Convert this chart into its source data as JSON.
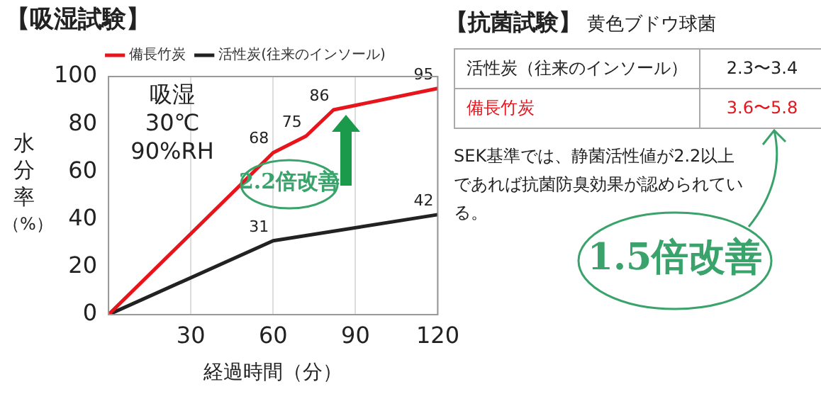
{
  "chart_data": [
    {
      "type": "line",
      "title": "【吸湿試験】",
      "xlabel": "経過時間（分）",
      "ylabel": "水分率（%）",
      "xlim": [
        0,
        120
      ],
      "xticks": [
        30,
        60,
        90,
        120
      ],
      "ylim": [
        0,
        100
      ],
      "yticks": [
        0,
        20,
        40,
        60,
        80,
        100
      ],
      "grid": "x",
      "legend": "top",
      "marker": "none",
      "line_style": "solid",
      "series": [
        {
          "name": "備長竹炭",
          "color": "#e8141c",
          "x": [
            0,
            60,
            72,
            82,
            120
          ],
          "values": [
            0,
            68,
            75,
            86,
            95
          ],
          "value_labels": [
            null,
            "68",
            "75",
            "86",
            "95"
          ]
        },
        {
          "name": "活性炭(往来のインソール)",
          "color": "#222222",
          "x": [
            0,
            60,
            120
          ],
          "values": [
            0,
            31,
            42
          ],
          "value_labels": [
            null,
            "31",
            "42"
          ]
        }
      ],
      "annotations": [
        "吸湿\n30℃\n90%RH",
        "2.2倍改善"
      ]
    },
    {
      "type": "other",
      "title": "【抗菌試験】",
      "subtitle": "黄色ブドウ球菌",
      "annotations": [
        "活性炭（往来のインソール）",
        "2.3〜3.4",
        "備長竹炭",
        "3.6〜5.8",
        "SEK基準では、静菌活性値が2.2以上であれば抗菌防臭効果が認められている。",
        "1.5倍改善"
      ],
      "colors": [
        "#222222",
        "#e8141c"
      ]
    }
  ]
}
